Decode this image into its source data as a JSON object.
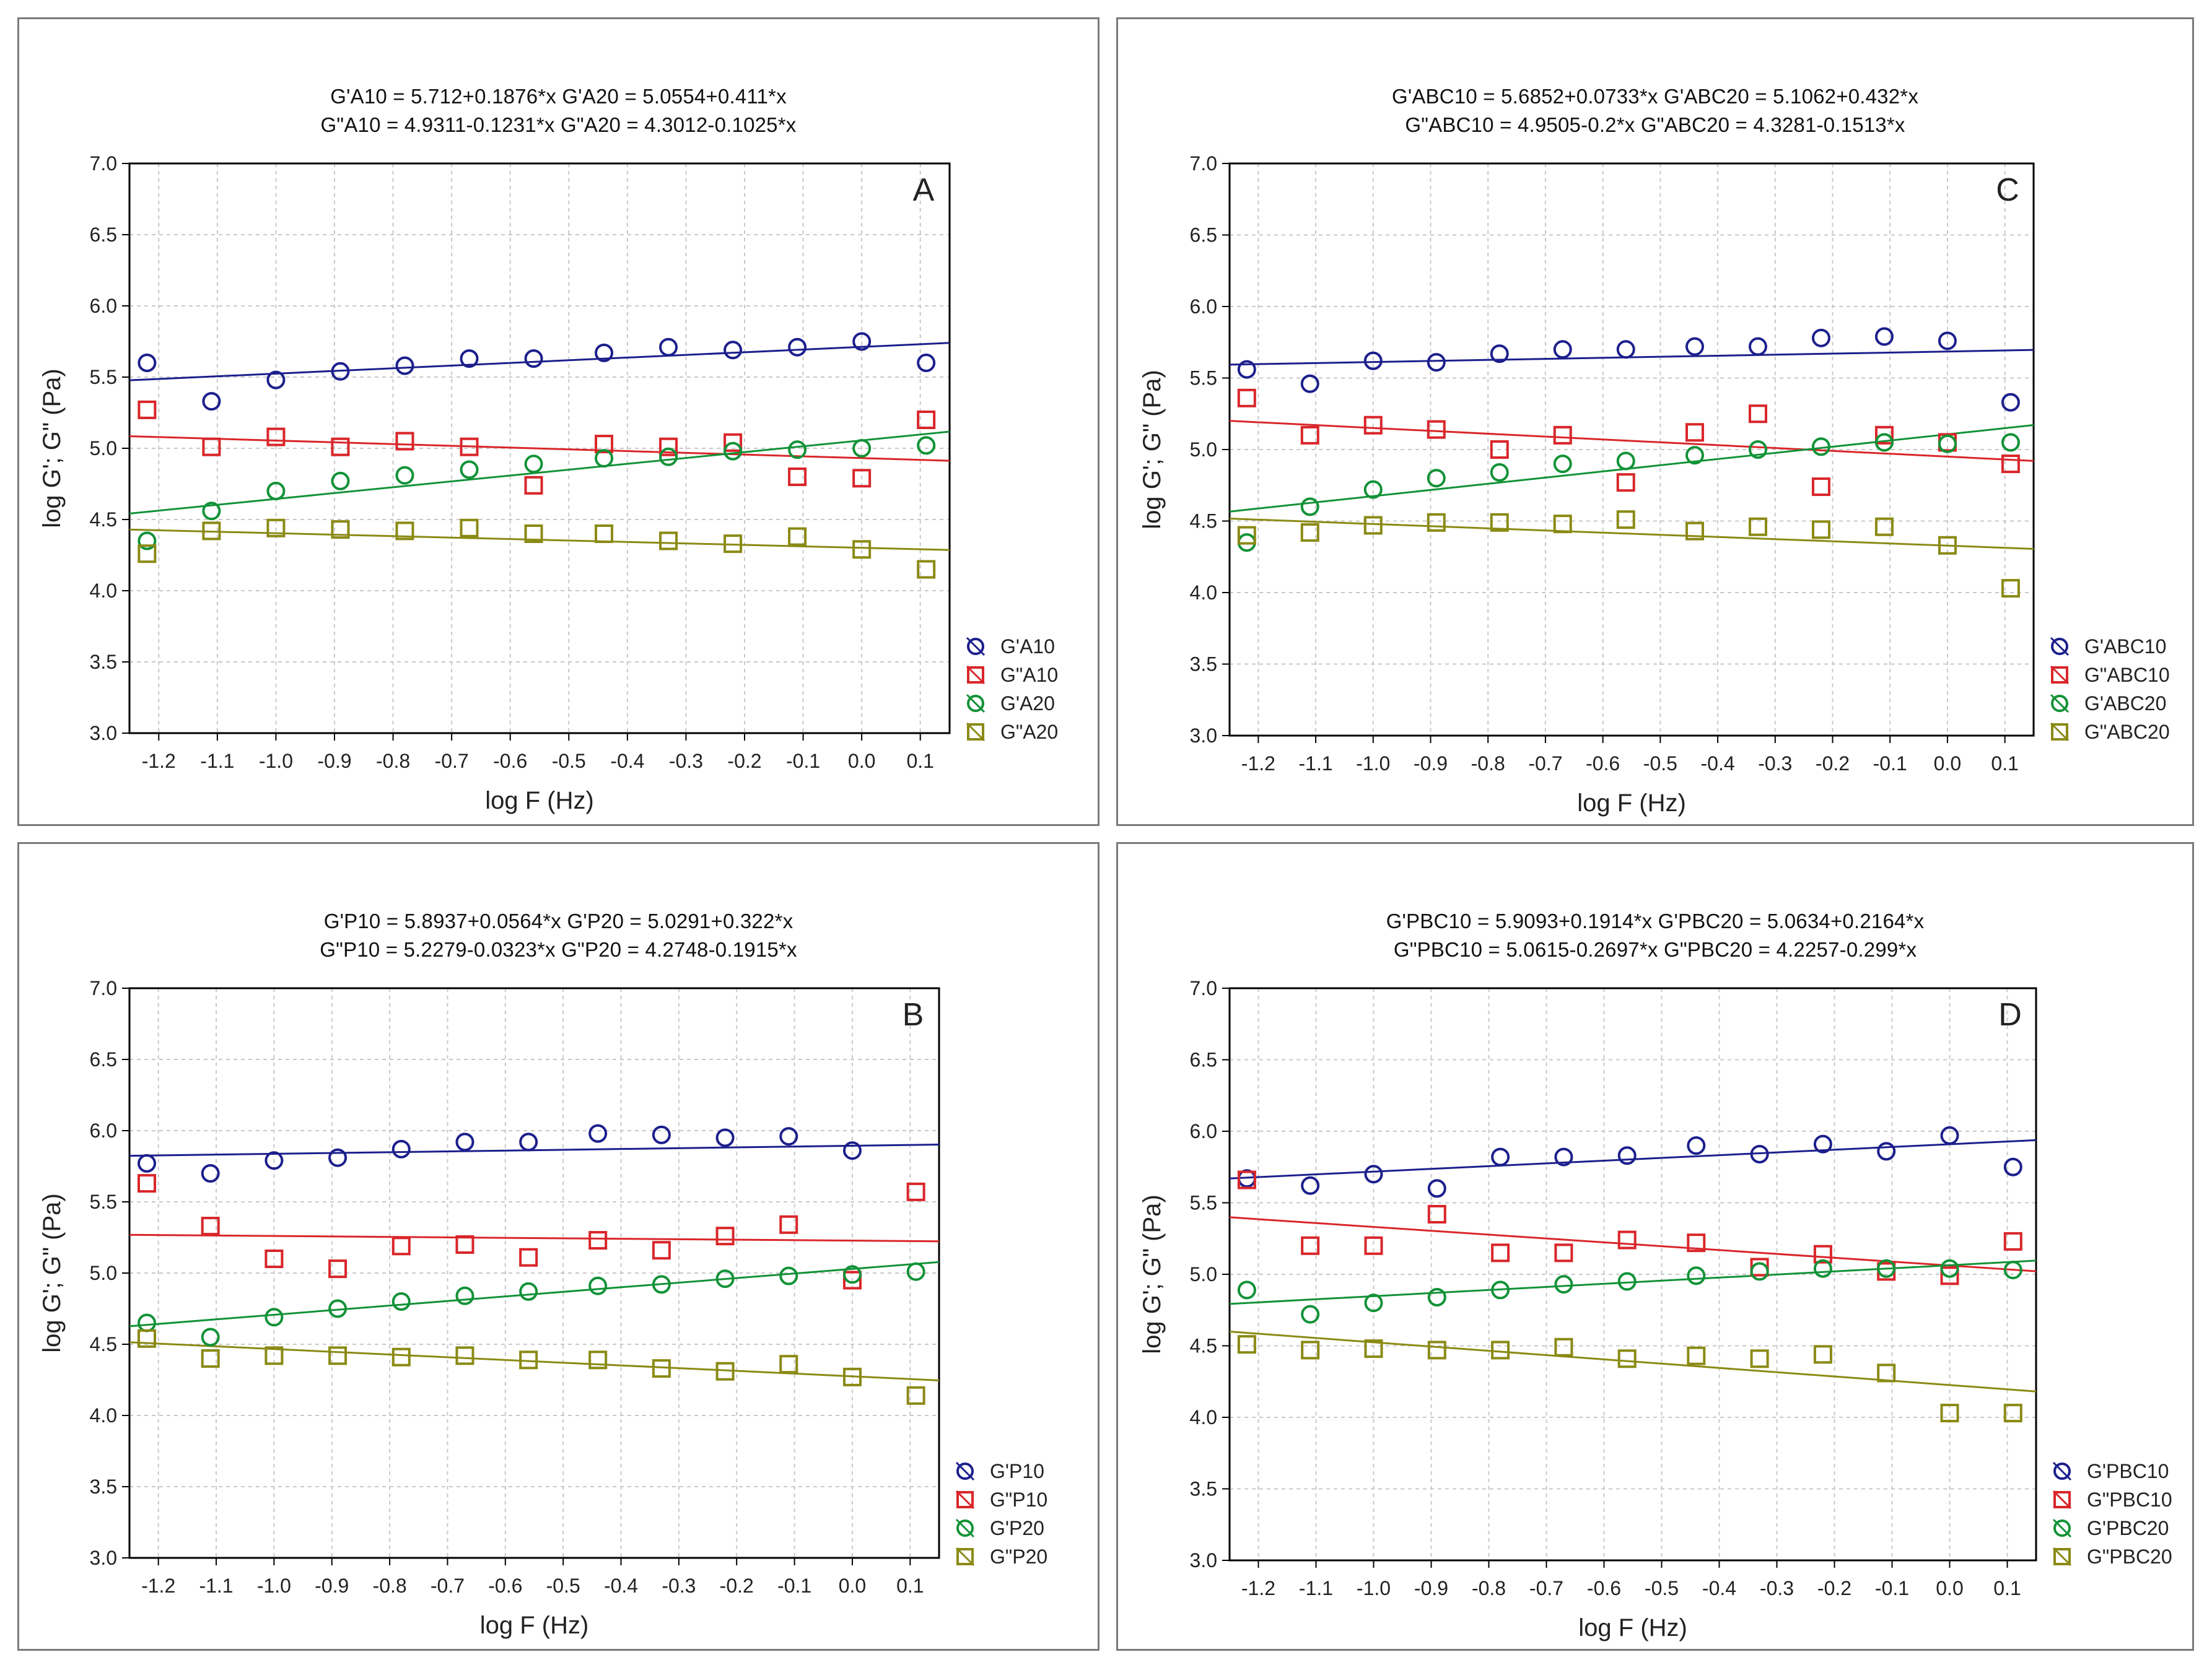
{
  "chart_data": [
    {
      "type": "scatter",
      "panel_label": "A",
      "equations": [
        "G'A10 = 5.712+0.1876*x    G'A20 = 5.0554+0.411*x",
        "G\"A10 = 4.9311-0.1231*x  G\"A20 = 4.3012-0.1025*x"
      ],
      "xlabel": "log F (Hz)",
      "ylabel": "log G'; G\" (Pa)",
      "xlim": [
        -1.25,
        0.15
      ],
      "ylim": [
        3.0,
        7.0
      ],
      "xticks": [
        "-1.2",
        "-1.1",
        "-1.0",
        "-0.9",
        "-0.8",
        "-0.7",
        "-0.6",
        "-0.5",
        "-0.4",
        "-0.3",
        "-0.2",
        "-0.1",
        "0.0",
        "0.1"
      ],
      "yticks": [
        "3.0",
        "3.5",
        "4.0",
        "4.5",
        "5.0",
        "5.5",
        "6.0",
        "6.5",
        "7.0"
      ],
      "x": [
        -1.22,
        -1.11,
        -1.0,
        -0.89,
        -0.78,
        -0.67,
        -0.56,
        -0.44,
        -0.33,
        -0.22,
        -0.11,
        0.0,
        0.11
      ],
      "legend_position": "right",
      "series": [
        {
          "name": "G'A10",
          "marker": "circle",
          "color": "#1c1f8c",
          "fit": [
            5.712,
            0.1876
          ],
          "values": [
            5.6,
            5.33,
            5.48,
            5.54,
            5.58,
            5.63,
            5.63,
            5.67,
            5.71,
            5.69,
            5.71,
            5.75,
            5.6
          ]
        },
        {
          "name": "G\"A10",
          "marker": "square",
          "color": "#d9262a",
          "fit": [
            4.9311,
            -0.1231
          ],
          "values": [
            5.27,
            5.01,
            5.08,
            5.01,
            5.05,
            5.01,
            4.74,
            5.03,
            5.01,
            5.04,
            4.8,
            4.79,
            5.2
          ]
        },
        {
          "name": "G'A20",
          "marker": "circle",
          "color": "#129237",
          "fit": [
            5.0554,
            0.411
          ],
          "values": [
            4.35,
            4.56,
            4.7,
            4.77,
            4.81,
            4.85,
            4.89,
            4.93,
            4.94,
            4.98,
            4.99,
            5.0,
            5.02
          ]
        },
        {
          "name": "G\"A20",
          "marker": "square",
          "color": "#8a8a15",
          "fit": [
            4.3012,
            -0.1025
          ],
          "values": [
            4.26,
            4.42,
            4.44,
            4.43,
            4.42,
            4.44,
            4.4,
            4.4,
            4.35,
            4.33,
            4.38,
            4.29,
            4.15
          ]
        }
      ]
    },
    {
      "type": "scatter",
      "panel_label": "C",
      "equations": [
        "G'ABC10 = 5.6852+0.0733*x    G'ABC20 = 5.1062+0.432*x",
        "G\"ABC10 = 4.9505-0.2*x      G\"ABC20 = 4.3281-0.1513*x"
      ],
      "xlabel": "log F (Hz)",
      "ylabel": "log G'; G\" (Pa)",
      "xlim": [
        -1.25,
        0.15
      ],
      "ylim": [
        3.0,
        7.0
      ],
      "xticks": [
        "-1.2",
        "-1.1",
        "-1.0",
        "-0.9",
        "-0.8",
        "-0.7",
        "-0.6",
        "-0.5",
        "-0.4",
        "-0.3",
        "-0.2",
        "-0.1",
        "0.0",
        "0.1"
      ],
      "yticks": [
        "3.0",
        "3.5",
        "4.0",
        "4.5",
        "5.0",
        "5.5",
        "6.0",
        "6.5",
        "7.0"
      ],
      "x": [
        -1.22,
        -1.11,
        -1.0,
        -0.89,
        -0.78,
        -0.67,
        -0.56,
        -0.44,
        -0.33,
        -0.22,
        -0.11,
        0.0,
        0.11
      ],
      "legend_position": "right",
      "series": [
        {
          "name": "G'ABC10",
          "marker": "circle",
          "color": "#1c1f8c",
          "fit": [
            5.6852,
            0.0733
          ],
          "values": [
            5.56,
            5.46,
            5.62,
            5.61,
            5.67,
            5.7,
            5.7,
            5.72,
            5.72,
            5.78,
            5.79,
            5.76,
            5.33
          ]
        },
        {
          "name": "G\"ABC10",
          "marker": "square",
          "color": "#d9262a",
          "fit": [
            4.9505,
            -0.2
          ],
          "values": [
            5.36,
            5.1,
            5.17,
            5.14,
            5.0,
            5.1,
            4.77,
            5.12,
            5.25,
            4.74,
            5.1,
            5.05,
            4.9
          ]
        },
        {
          "name": "G'ABC20",
          "marker": "circle",
          "color": "#129237",
          "fit": [
            5.1062,
            0.432
          ],
          "values": [
            4.35,
            4.6,
            4.72,
            4.8,
            4.84,
            4.9,
            4.92,
            4.96,
            5.0,
            5.02,
            5.05,
            5.04,
            5.05
          ]
        },
        {
          "name": "G\"ABC20",
          "marker": "square",
          "color": "#8a8a15",
          "fit": [
            4.3281,
            -0.1513
          ],
          "values": [
            4.4,
            4.42,
            4.47,
            4.49,
            4.49,
            4.48,
            4.51,
            4.43,
            4.46,
            4.44,
            4.46,
            4.33,
            4.03
          ]
        }
      ]
    },
    {
      "type": "scatter",
      "panel_label": "B",
      "equations": [
        "G'P10 = 5.8937+0.0564*x    G'P20 = 5.0291+0.322*x",
        "G\"P10 = 5.2279-0.0323*x   G\"P20 = 4.2748-0.1915*x"
      ],
      "xlabel": "log F (Hz)",
      "ylabel": "log G'; G\" (Pa)",
      "xlim": [
        -1.25,
        0.15
      ],
      "ylim": [
        3.0,
        7.0
      ],
      "xticks": [
        "-1.2",
        "-1.1",
        "-1.0",
        "-0.9",
        "-0.8",
        "-0.7",
        "-0.6",
        "-0.5",
        "-0.4",
        "-0.3",
        "-0.2",
        "-0.1",
        "0.0",
        "0.1"
      ],
      "yticks": [
        "3.0",
        "3.5",
        "4.0",
        "4.5",
        "5.0",
        "5.5",
        "6.0",
        "6.5",
        "7.0"
      ],
      "x": [
        -1.22,
        -1.11,
        -1.0,
        -0.89,
        -0.78,
        -0.67,
        -0.56,
        -0.44,
        -0.33,
        -0.22,
        -0.11,
        0.0,
        0.11
      ],
      "legend_position": "right",
      "series": [
        {
          "name": "G'P10",
          "marker": "circle",
          "color": "#1c1f8c",
          "fit": [
            5.8937,
            0.0564
          ],
          "values": [
            5.77,
            5.7,
            5.79,
            5.81,
            5.87,
            5.92,
            5.92,
            5.98,
            5.97,
            5.95,
            5.96,
            5.86,
            null
          ]
        },
        {
          "name": "G\"P10",
          "marker": "square",
          "color": "#d9262a",
          "fit": [
            5.2279,
            -0.0323
          ],
          "values": [
            5.63,
            5.33,
            5.1,
            5.03,
            5.19,
            5.2,
            5.11,
            5.23,
            5.16,
            5.26,
            5.34,
            4.95,
            5.57
          ]
        },
        {
          "name": "G'P20",
          "marker": "circle",
          "color": "#129237",
          "fit": [
            5.0291,
            0.322
          ],
          "values": [
            4.65,
            4.55,
            4.69,
            4.75,
            4.8,
            4.84,
            4.87,
            4.91,
            4.92,
            4.96,
            4.98,
            4.99,
            5.01
          ]
        },
        {
          "name": "G\"P20",
          "marker": "square",
          "color": "#8a8a15",
          "fit": [
            4.2748,
            -0.1915
          ],
          "values": [
            4.54,
            4.4,
            4.42,
            4.42,
            4.41,
            4.42,
            4.39,
            4.39,
            4.33,
            4.31,
            4.36,
            4.27,
            4.14
          ]
        }
      ]
    },
    {
      "type": "scatter",
      "panel_label": "D",
      "equations": [
        "G'PBC10 = 5.9093+0.1914*x    G'PBC20 = 5.0634+0.2164*x",
        "G\"PBC10 = 5.0615-0.2697*x    G\"PBC20 = 4.2257-0.299*x"
      ],
      "xlabel": "log F (Hz)",
      "ylabel": "log G'; G\" (Pa)",
      "xlim": [
        -1.25,
        0.15
      ],
      "ylim": [
        3.0,
        7.0
      ],
      "xticks": [
        "-1.2",
        "-1.1",
        "-1.0",
        "-0.9",
        "-0.8",
        "-0.7",
        "-0.6",
        "-0.5",
        "-0.4",
        "-0.3",
        "-0.2",
        "-0.1",
        "0.0",
        "0.1"
      ],
      "yticks": [
        "3.0",
        "3.5",
        "4.0",
        "4.5",
        "5.0",
        "5.5",
        "6.0",
        "6.5",
        "7.0"
      ],
      "x": [
        -1.22,
        -1.11,
        -1.0,
        -0.89,
        -0.78,
        -0.67,
        -0.56,
        -0.44,
        -0.33,
        -0.22,
        -0.11,
        0.0,
        0.11
      ],
      "legend_position": "right",
      "series": [
        {
          "name": "G'PBC10",
          "marker": "circle",
          "color": "#1c1f8c",
          "fit": [
            5.9093,
            0.1914
          ],
          "values": [
            5.67,
            5.62,
            5.7,
            5.6,
            5.82,
            5.82,
            5.83,
            5.9,
            5.84,
            5.91,
            5.86,
            5.97,
            5.75
          ]
        },
        {
          "name": "G\"PBC10",
          "marker": "square",
          "color": "#d9262a",
          "fit": [
            5.0615,
            -0.2697
          ],
          "values": [
            5.66,
            5.2,
            5.2,
            5.42,
            5.15,
            5.15,
            5.24,
            5.22,
            5.05,
            5.14,
            5.02,
            4.99,
            5.23
          ]
        },
        {
          "name": "G'PBC20",
          "marker": "circle",
          "color": "#129237",
          "fit": [
            5.0634,
            0.2164
          ],
          "values": [
            4.89,
            4.72,
            4.8,
            4.84,
            4.89,
            4.93,
            4.95,
            4.99,
            5.02,
            5.04,
            5.04,
            5.04,
            5.03
          ]
        },
        {
          "name": "G\"PBC20",
          "marker": "square",
          "color": "#8a8a15",
          "fit": [
            4.2257,
            -0.299
          ],
          "values": [
            4.51,
            4.47,
            4.48,
            4.47,
            4.47,
            4.49,
            4.41,
            4.43,
            4.41,
            4.44,
            4.31,
            4.03,
            4.03
          ]
        }
      ]
    }
  ]
}
